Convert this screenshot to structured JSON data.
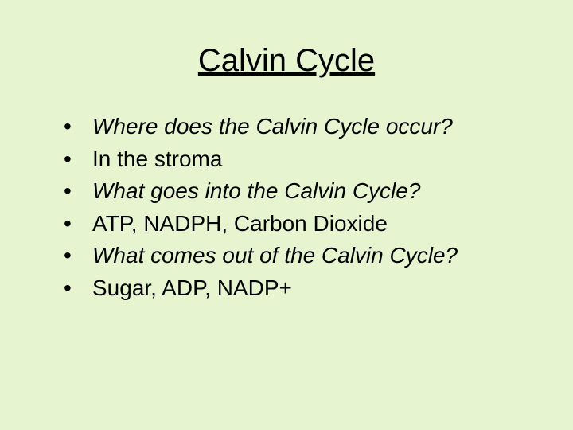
{
  "slide": {
    "background_color": "#e6f5d0",
    "text_color": "#000000",
    "title": {
      "text": "Calvin Cycle",
      "font_size_pt": 40,
      "underline": true,
      "align": "center",
      "font_weight": "normal"
    },
    "bullets": {
      "font_size_pt": 28,
      "marker": "•",
      "items": [
        {
          "text": "Where does the Calvin Cycle occur?",
          "italic": true
        },
        {
          "text": "In the stroma",
          "italic": false
        },
        {
          "text": "What goes into the Calvin Cycle?",
          "italic": true
        },
        {
          "text": "ATP, NADPH, Carbon Dioxide",
          "italic": false
        },
        {
          "text": "What comes out of the Calvin Cycle?",
          "italic": true
        },
        {
          "text": "Sugar, ADP, NADP+",
          "italic": false
        }
      ]
    }
  }
}
